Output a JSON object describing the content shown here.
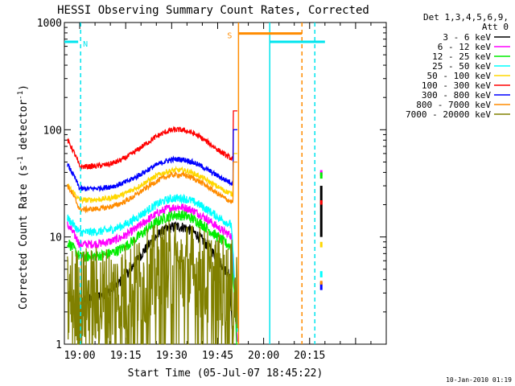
{
  "chart_data": {
    "type": "line",
    "title": "HESSI Observing Summary Count Rates, Corrected",
    "xlabel": "Start Time (05-Jul-07 18:45:22)",
    "ylabel_main": "Corrected Count Rate (s",
    "ylabel_sup1": "-1",
    "ylabel_mid": " detector",
    "ylabel_sup2": "-1",
    "ylabel_end": ")",
    "y_scale": "log",
    "ylim": [
      1,
      1000
    ],
    "xlim_minutes_after_start": [
      -5,
      100
    ],
    "y_ticks": [
      "1",
      "10",
      "100",
      "1000"
    ],
    "x_ticks": [
      {
        "label": "19:00",
        "minute": 0
      },
      {
        "label": "19:15",
        "minute": 15
      },
      {
        "label": "19:30",
        "minute": 30
      },
      {
        "label": "19:45",
        "minute": 45
      },
      {
        "label": "20:00",
        "minute": 60
      },
      {
        "label": "20:15",
        "minute": 75
      }
    ],
    "legend_header": [
      "Det 1,3,4,5,6,9,",
      "Att 0"
    ],
    "series": [
      {
        "name": "3 - 6 keV",
        "color": "#000000",
        "kind": "bump",
        "t_start": 1,
        "base": 2.6,
        "peak": 12.5,
        "drop_t": 50.3,
        "drop_to": 1,
        "spike": 0,
        "jitter": 0.05
      },
      {
        "name": "6 - 12 keV",
        "color": "#ff00ff",
        "kind": "bump",
        "t_start": -4,
        "base": 8.5,
        "peak": 19,
        "pre": 13,
        "spike": 0,
        "drop_t": 51,
        "drop_to": 1,
        "jitter": 0.04
      },
      {
        "name": "12 - 25 keV",
        "color": "#00ee00",
        "kind": "bump",
        "t_start": -4,
        "base": 6.5,
        "peak": 16,
        "pre": 9,
        "spike": 0,
        "drop_t": 51,
        "drop_to": 1,
        "jitter": 0.05
      },
      {
        "name": "25 - 50 keV",
        "color": "#00ffff",
        "kind": "bump",
        "t_start": -4,
        "base": 11,
        "peak": 23,
        "pre": 15,
        "spike": 0,
        "drop_t": 51,
        "drop_to": 1,
        "jitter": 0.04
      },
      {
        "name": "50 - 100 keV",
        "color": "#ffd700",
        "kind": "bump",
        "t_start": -4,
        "base": 22,
        "peak": 42,
        "pre": 30,
        "spike": 60,
        "jitter": 0.025
      },
      {
        "name": "100 - 300 keV",
        "color": "#ff0000",
        "kind": "bump",
        "t_start": -4,
        "base": 45,
        "peak": 100,
        "pre": 80,
        "spike": 150,
        "jitter": 0.025
      },
      {
        "name": "300 - 800 keV",
        "color": "#0000ff",
        "kind": "bump",
        "t_start": -4,
        "base": 28,
        "peak": 53,
        "pre": 47,
        "spike": 100,
        "jitter": 0.025
      },
      {
        "name": "800 - 7000 keV",
        "color": "#ff8c00",
        "kind": "bump",
        "t_start": -4,
        "base": 18,
        "peak": 38,
        "pre": 30,
        "spike": 50,
        "jitter": 0.025
      },
      {
        "name": "7000 - 20000 keV",
        "color": "#808000",
        "kind": "noise",
        "t_start": -4,
        "base": 2.5,
        "peak": 4.5,
        "spike": 0,
        "jitter": 0.35
      }
    ],
    "late_segments": [
      {
        "series": 0,
        "y": [
          10,
          30
        ]
      },
      {
        "series": 1,
        "y": [
          37,
          42
        ]
      },
      {
        "series": 2,
        "y": [
          35,
          40
        ]
      },
      {
        "series": 3,
        "y": [
          4.2,
          4.8
        ]
      },
      {
        "series": 4,
        "y": [
          8,
          9
        ]
      },
      {
        "series": 5,
        "y": [
          20,
          22
        ]
      },
      {
        "series": 6,
        "y": [
          3.2,
          3.8
        ]
      },
      {
        "series": 7,
        "y": [
          3.6,
          3.9
        ]
      }
    ],
    "annotations": [
      {
        "text": "N",
        "color": "#00e5ee",
        "line_style": "solid",
        "x_start_min": -5,
        "x_end_min": -0.5,
        "y_band": 660
      },
      {
        "text": "S",
        "color": "#ff8c00",
        "line_style": "solid",
        "x_start_min": 51.8,
        "x_end_min": 72.5,
        "y_band": 790
      }
    ],
    "vertical_markers": [
      {
        "minute": 0.3,
        "color": "#00e5ee",
        "style": "dashed"
      },
      {
        "minute": 51.8,
        "color": "#ff8c00",
        "style": "solid"
      },
      {
        "minute": 62,
        "color": "#00e5ee",
        "style": "solid"
      },
      {
        "minute": 72.5,
        "color": "#ff8c00",
        "style": "dashed"
      },
      {
        "minute": 76.7,
        "color": "#00e5ee",
        "style": "dashed"
      }
    ],
    "cyan_band": {
      "from_min": 62,
      "to_min": 80,
      "y": 660
    }
  },
  "footer_timestamp": "10-Jan-2010 01:19"
}
